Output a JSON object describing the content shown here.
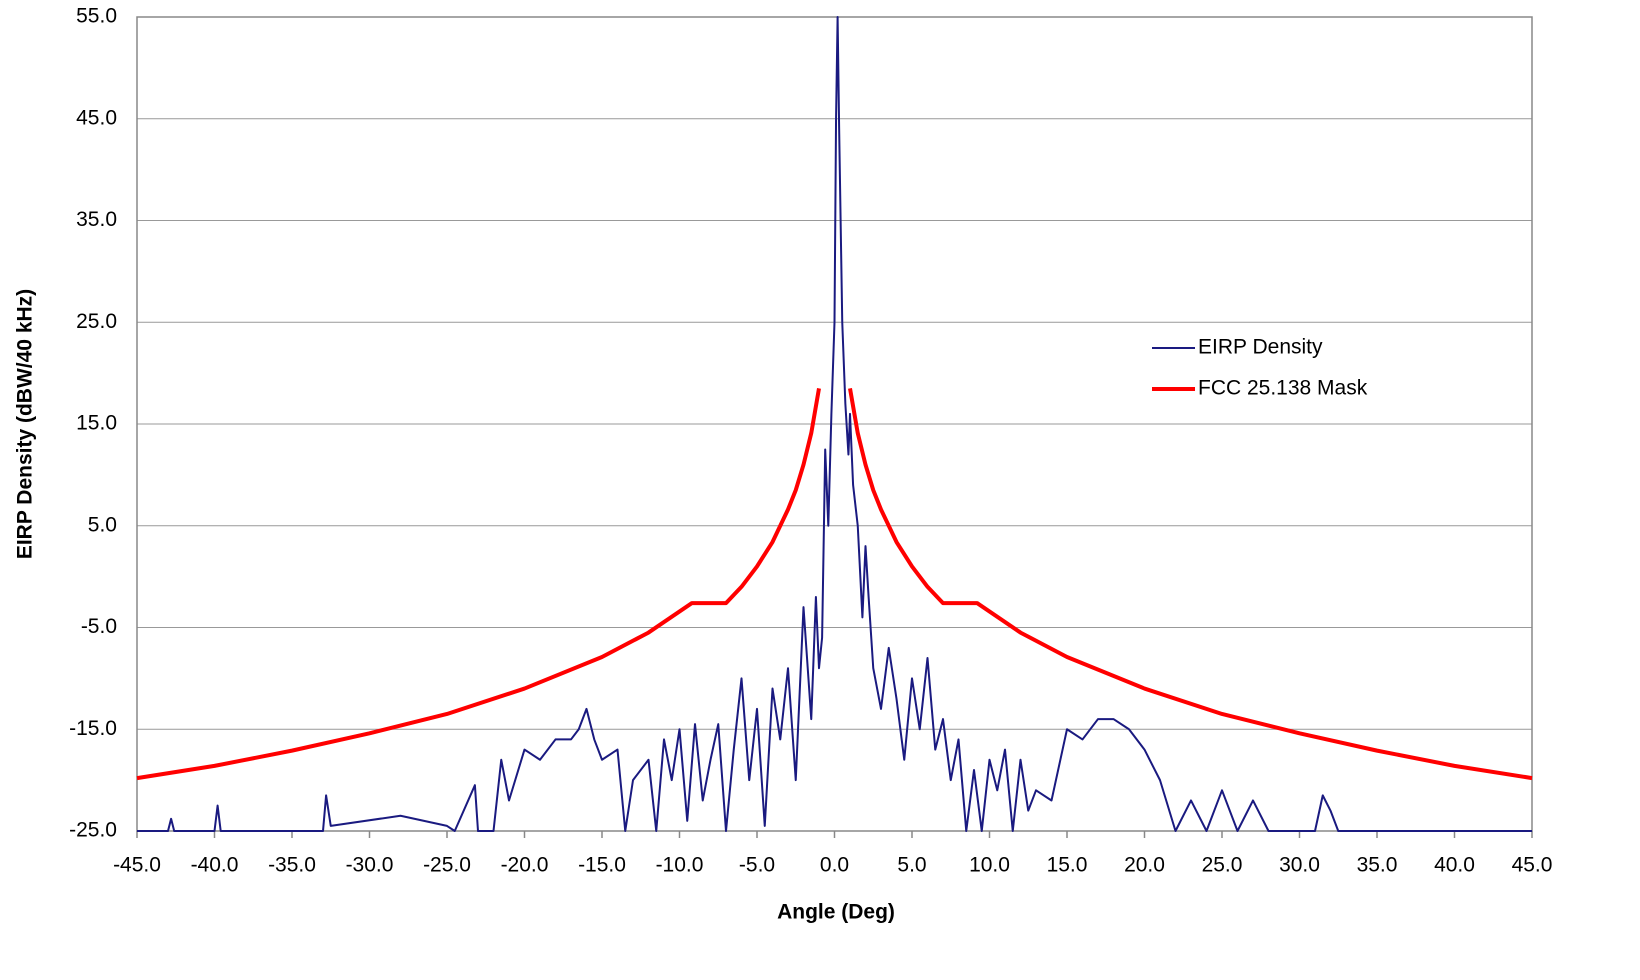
{
  "chart_data": {
    "type": "line",
    "xlabel": "Angle (Deg)",
    "ylabel": "EIRP Density (dBW/40 kHz)",
    "xlim": [
      -45,
      45
    ],
    "ylim": [
      -25,
      55
    ],
    "xticks": [
      {
        "value": -45,
        "label": "-45.0"
      },
      {
        "value": -40,
        "label": "-40.0"
      },
      {
        "value": -35,
        "label": "-35.0"
      },
      {
        "value": -30,
        "label": "-30.0"
      },
      {
        "value": -25,
        "label": "-25.0"
      },
      {
        "value": -20,
        "label": "-20.0"
      },
      {
        "value": -15,
        "label": "-15.0"
      },
      {
        "value": -10,
        "label": "-10.0"
      },
      {
        "value": -5,
        "label": "-5.0"
      },
      {
        "value": 0,
        "label": "0.0"
      },
      {
        "value": 5,
        "label": "5.0"
      },
      {
        "value": 10,
        "label": "10.0"
      },
      {
        "value": 15,
        "label": "15.0"
      },
      {
        "value": 20,
        "label": "20.0"
      },
      {
        "value": 25,
        "label": "25.0"
      },
      {
        "value": 30,
        "label": "30.0"
      },
      {
        "value": 35,
        "label": "35.0"
      },
      {
        "value": 40,
        "label": "40.0"
      },
      {
        "value": 45,
        "label": "45.0"
      }
    ],
    "yticks": [
      {
        "value": -25,
        "label": "-25.0"
      },
      {
        "value": -15,
        "label": "-15.0"
      },
      {
        "value": -5,
        "label": "-5.0"
      },
      {
        "value": 5,
        "label": "5.0"
      },
      {
        "value": 15,
        "label": "15.0"
      },
      {
        "value": 25,
        "label": "25.0"
      },
      {
        "value": 35,
        "label": "35.0"
      },
      {
        "value": 45,
        "label": "45.0"
      },
      {
        "value": 55,
        "label": "55.0"
      }
    ],
    "grid": true,
    "legend": "right",
    "series": [
      {
        "name": "EIRP Density",
        "color": "#1a1a80",
        "width": 2,
        "x": [
          -45,
          -43,
          -42.8,
          -42.6,
          -40,
          -39.8,
          -39.6,
          -33,
          -32.8,
          -32.5,
          -28,
          -25,
          -24.5,
          -23.2,
          -23,
          -22,
          -21.5,
          -21,
          -20,
          -19,
          -18,
          -17,
          -16.5,
          -16,
          -15.5,
          -15,
          -14,
          -13.5,
          -13,
          -12,
          -11.5,
          -11,
          -10.5,
          -10,
          -9.5,
          -9,
          -8.5,
          -8,
          -7.5,
          -7,
          -6.5,
          -6,
          -5.5,
          -5,
          -4.5,
          -4,
          -3.5,
          -3,
          -2.5,
          -2,
          -1.5,
          -1.2,
          -1,
          -0.8,
          -0.6,
          -0.4,
          -0.2,
          0,
          0.1,
          0.2,
          0.3,
          0.5,
          0.7,
          0.9,
          1,
          1.2,
          1.5,
          1.8,
          2,
          2.2,
          2.5,
          3,
          3.5,
          4,
          4.5,
          5,
          5.5,
          6,
          6.5,
          7,
          7.5,
          8,
          8.5,
          9,
          9.5,
          10,
          10.5,
          11,
          11.5,
          12,
          12.5,
          13,
          14,
          15,
          16,
          17,
          18,
          19,
          20,
          21,
          22,
          23,
          24,
          25,
          26,
          27,
          28,
          29,
          30,
          31,
          31.5,
          32,
          32.5,
          35,
          40,
          45
        ],
        "values": [
          -25,
          -25,
          -23.8,
          -25,
          -25,
          -22.5,
          -25,
          -25,
          -21.5,
          -24.5,
          -23.5,
          -24.5,
          -25,
          -20.5,
          -25,
          -25,
          -18,
          -22,
          -17,
          -18,
          -16,
          -16,
          -15,
          -13,
          -16,
          -18,
          -17,
          -25,
          -20,
          -18,
          -25,
          -16,
          -20,
          -15,
          -24,
          -14.5,
          -22,
          -18,
          -14.5,
          -25,
          -17,
          -10,
          -20,
          -13,
          -24.5,
          -11,
          -16,
          -9,
          -20,
          -3,
          -14,
          -2,
          -9,
          -6,
          12.5,
          5,
          16,
          25,
          45,
          55,
          44,
          25,
          17,
          12,
          16,
          9,
          5,
          -4,
          3,
          -2,
          -9,
          -13,
          -7,
          -12,
          -18,
          -10,
          -15,
          -8,
          -17,
          -14,
          -20,
          -16,
          -25,
          -19,
          -25,
          -18,
          -21,
          -17,
          -25,
          -18,
          -23,
          -21,
          -22,
          -15,
          -16,
          -14,
          -14,
          -15,
          -17,
          -20,
          -25,
          -22,
          -25,
          -21,
          -25,
          -22,
          -25,
          -25,
          -25,
          -25,
          -21.5,
          -23,
          -25,
          -25,
          -25,
          -25
        ]
      },
      {
        "name": "FCC 25.138 Mask",
        "color": "#ff0000",
        "width": 4,
        "x": [
          -45,
          -40,
          -35,
          -30,
          -25,
          -20,
          -15,
          -12,
          -9.2,
          -7,
          -6,
          -5,
          -4,
          -3,
          -2.5,
          -2,
          -1.5,
          -1,
          0,
          1,
          1.5,
          2,
          2.5,
          3,
          4,
          5,
          6,
          7,
          9.2,
          12,
          15,
          20,
          25,
          30,
          35,
          40,
          45
        ],
        "values": [
          -19.8,
          -18.6,
          -17.1,
          -15.4,
          -13.5,
          -11.0,
          -7.9,
          -5.5,
          -2.6,
          -2.6,
          -1.0,
          1.0,
          3.4,
          6.6,
          8.5,
          11.0,
          14.1,
          18.5,
          null,
          18.5,
          14.1,
          11.0,
          8.5,
          6.6,
          3.4,
          1.0,
          -1.0,
          -2.6,
          -2.6,
          -5.5,
          -7.9,
          -11.0,
          -13.5,
          -15.4,
          -17.1,
          -18.6,
          -19.8
        ]
      }
    ]
  }
}
